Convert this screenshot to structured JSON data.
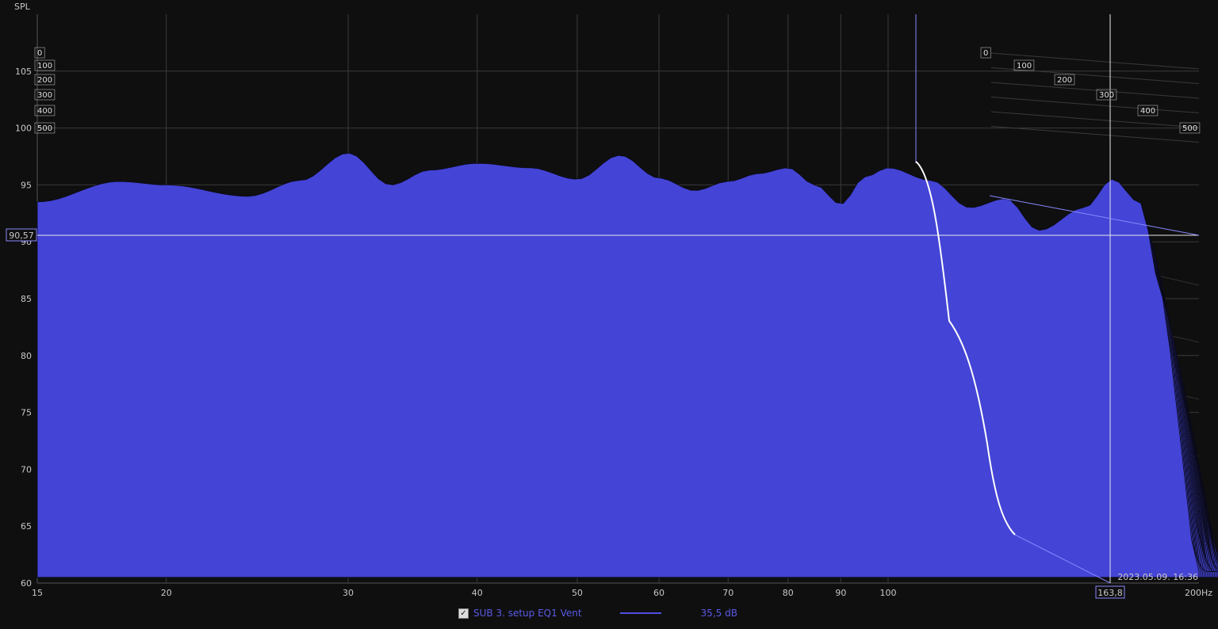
{
  "chart_data": {
    "type": "waterfall",
    "ylabel": "SPL",
    "y_ticks": [
      60,
      65,
      70,
      75,
      80,
      85,
      90,
      95,
      100,
      105
    ],
    "ylim": [
      60,
      110
    ],
    "x_scale": "log",
    "xlim": [
      15,
      200
    ],
    "x_ticks": [
      15,
      20,
      30,
      40,
      50,
      60,
      70,
      80,
      90,
      100
    ],
    "x_tick_labels": [
      "15",
      "20",
      "30",
      "40",
      "50",
      "60",
      "70",
      "80",
      "90",
      "100"
    ],
    "x_end_label": "200Hz",
    "time_ticks_ms": [
      0,
      100,
      200,
      300,
      400,
      500
    ],
    "time_tick_labels": [
      "0",
      "100",
      "200",
      "300",
      "400",
      "500"
    ],
    "cursor": {
      "spl_label": "90,57",
      "freq_label": "163,8"
    },
    "timestamp": "2023.05.09. 16:36",
    "front_slice": {
      "freq_hz": [
        15,
        18,
        20,
        24,
        27,
        30,
        33,
        36,
        40,
        45,
        50,
        55,
        60,
        65,
        70,
        75,
        80,
        85,
        90,
        95,
        100,
        110,
        120,
        130,
        140,
        155,
        165,
        175,
        185
      ],
      "spl_db": [
        93.5,
        95.3,
        95.0,
        94.0,
        95.4,
        97.8,
        95.0,
        96.3,
        96.9,
        96.5,
        95.5,
        97.6,
        95.6,
        94.5,
        95.3,
        96.0,
        96.5,
        95.0,
        93.3,
        95.7,
        96.5,
        95.4,
        93.0,
        93.8,
        91.0,
        93.0,
        95.5,
        93.5,
        85.0
      ]
    },
    "series": [
      {
        "name": "SUB 3. setup EQ1 Vent",
        "color": "#4444d6"
      }
    ]
  },
  "legend": {
    "checked_glyph": "✓",
    "name": "SUB 3. setup EQ1 Vent",
    "value": "35,5 dB"
  }
}
